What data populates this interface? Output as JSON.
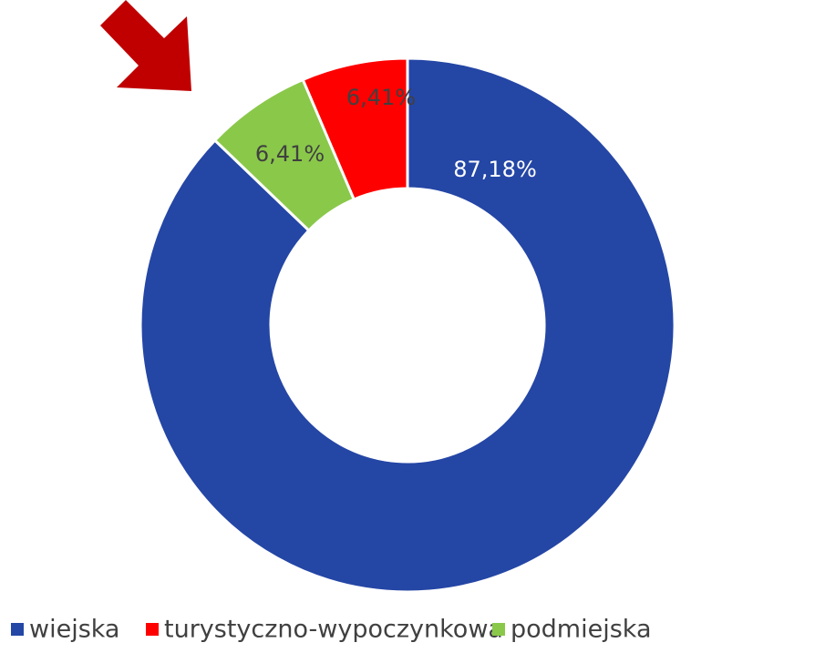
{
  "chart_data": {
    "type": "pie",
    "categories": [
      "wiejska",
      "turystyczno-wypoczynkowa",
      "podmiejska"
    ],
    "values": [
      87.18,
      6.41,
      6.41
    ],
    "value_labels": [
      "87,18%",
      "6,41%",
      "6,41%"
    ],
    "colors": [
      "#2446a5",
      "#ff0000",
      "#8ac84a"
    ],
    "legend": "bottom"
  }
}
